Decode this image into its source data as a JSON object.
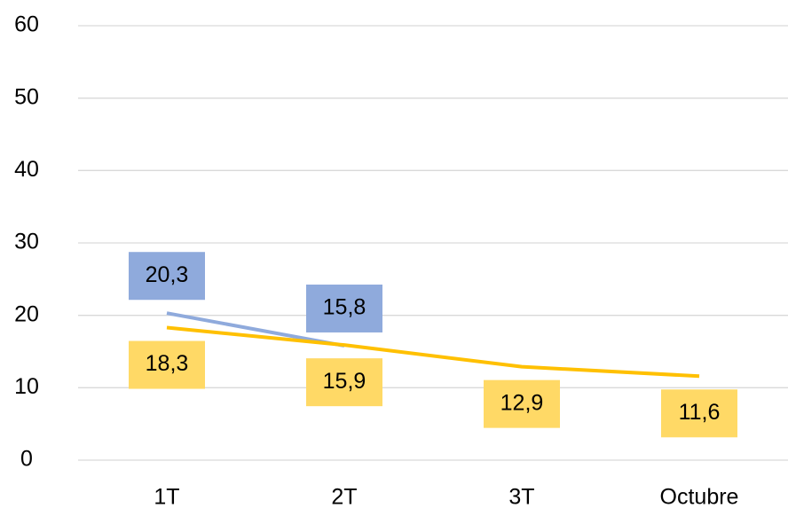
{
  "chart_data": {
    "type": "line",
    "categories": [
      "1T",
      "2T",
      "3T",
      "Octubre"
    ],
    "series": [
      {
        "color": "#8faadc",
        "label_color": "#8faadc",
        "values": [
          20.3,
          15.8,
          null,
          null
        ],
        "value_labels": [
          "20,3",
          "15,8",
          null,
          null
        ],
        "label_position": "above"
      },
      {
        "color": "#ffc000",
        "label_color": "#ffd966",
        "values": [
          18.3,
          15.9,
          12.9,
          11.6
        ],
        "value_labels": [
          "18,3",
          "15,9",
          "12,9",
          "11,6"
        ],
        "label_position": "below"
      }
    ],
    "ylim": [
      0,
      60
    ],
    "yticks": [
      0,
      10,
      20,
      30,
      40,
      50,
      60
    ],
    "grid": true
  }
}
